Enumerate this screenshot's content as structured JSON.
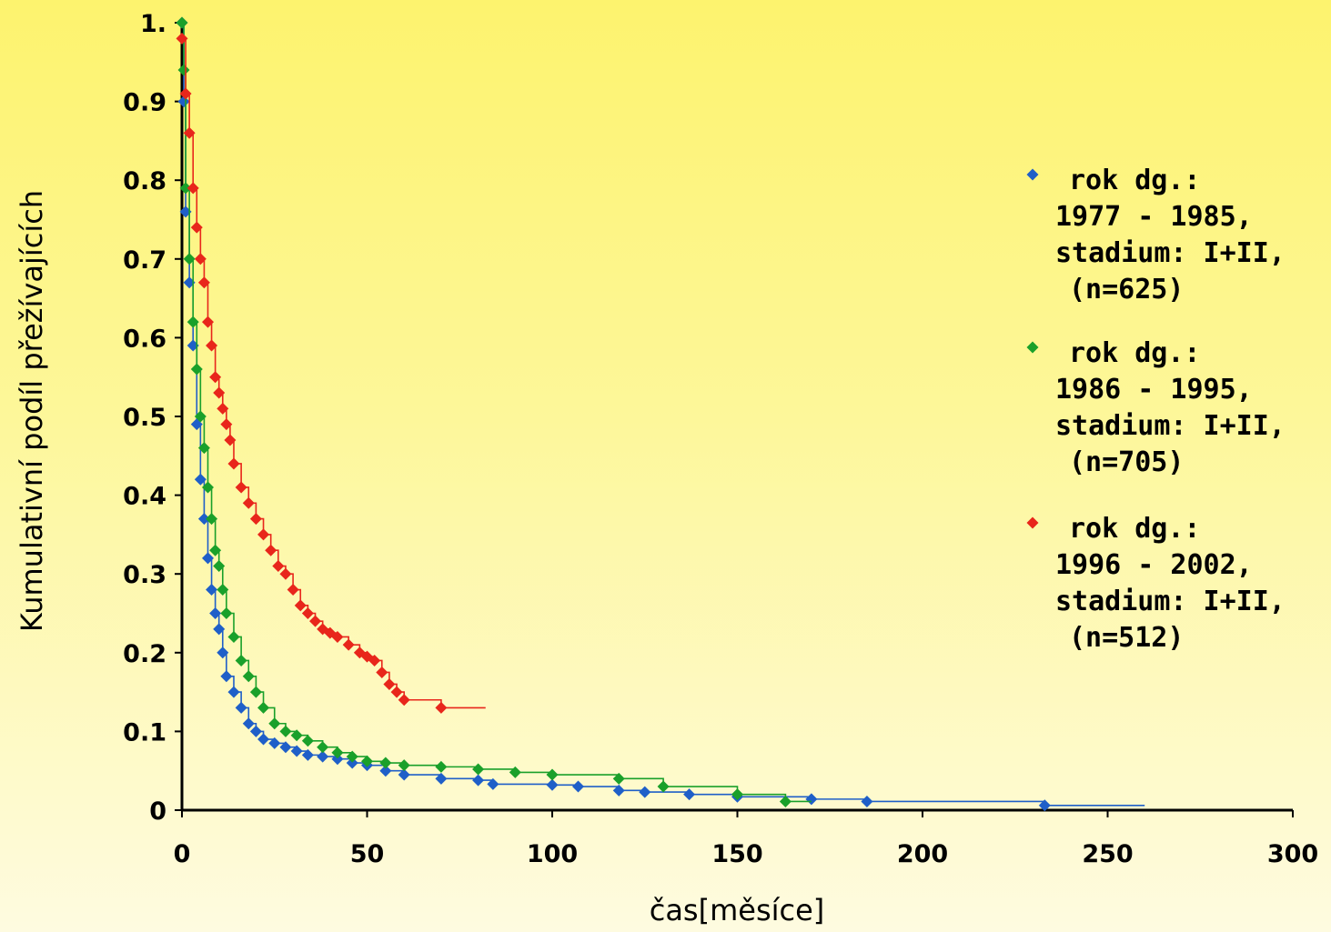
{
  "chart_data": {
    "type": "line",
    "xlabel": "čas[měsíce]",
    "ylabel": "Kumulativní podíl přežívajících",
    "xlim": [
      0,
      300
    ],
    "ylim": [
      0,
      1
    ],
    "x_ticks": [
      "0",
      "50",
      "100",
      "150",
      "200",
      "250",
      "300"
    ],
    "y_ticks": [
      "0",
      "0.1",
      "0.2",
      "0.3",
      "0.4",
      "0.5",
      "0.6",
      "0.7",
      "0.8",
      "0.9",
      "1."
    ],
    "grid": false,
    "legend_position": "right",
    "series": [
      {
        "name_lines": [
          "rok dg.:",
          "1977 - 1985,",
          "stadium: I+II,",
          "(n=625)"
        ],
        "color": "#1f5fc8",
        "x": [
          0,
          0.5,
          1,
          2,
          3,
          4,
          5,
          6,
          7,
          8,
          9,
          10,
          11,
          12,
          14,
          16,
          18,
          20,
          22,
          25,
          28,
          31,
          34,
          38,
          42,
          46,
          50,
          55,
          60,
          70,
          80,
          84,
          100,
          107,
          118,
          125,
          137,
          150,
          170,
          185,
          233,
          260
        ],
        "y": [
          1,
          0.9,
          0.76,
          0.67,
          0.59,
          0.49,
          0.42,
          0.37,
          0.32,
          0.28,
          0.25,
          0.23,
          0.2,
          0.17,
          0.15,
          0.13,
          0.11,
          0.1,
          0.09,
          0.085,
          0.08,
          0.075,
          0.07,
          0.068,
          0.065,
          0.06,
          0.057,
          0.05,
          0.045,
          0.04,
          0.038,
          0.033,
          0.032,
          0.03,
          0.025,
          0.023,
          0.02,
          0.017,
          0.014,
          0.011,
          0.006,
          0.006
        ]
      },
      {
        "name_lines": [
          "rok dg.:",
          "1986 - 1995,",
          "stadium: I+II,",
          "(n=705)"
        ],
        "color": "#1aa02a",
        "x": [
          0,
          0.5,
          1,
          2,
          3,
          4,
          5,
          6,
          7,
          8,
          9,
          10,
          11,
          12,
          14,
          16,
          18,
          20,
          22,
          25,
          28,
          31,
          34,
          38,
          42,
          46,
          50,
          55,
          60,
          70,
          80,
          90,
          100,
          118,
          130,
          150,
          163,
          170
        ],
        "y": [
          1,
          0.94,
          0.79,
          0.7,
          0.62,
          0.56,
          0.5,
          0.46,
          0.41,
          0.37,
          0.33,
          0.31,
          0.28,
          0.25,
          0.22,
          0.19,
          0.17,
          0.15,
          0.13,
          0.11,
          0.1,
          0.095,
          0.088,
          0.08,
          0.073,
          0.068,
          0.062,
          0.06,
          0.057,
          0.055,
          0.052,
          0.048,
          0.045,
          0.04,
          0.03,
          0.02,
          0.011,
          0.011
        ]
      },
      {
        "name_lines": [
          "rok dg.:",
          "1996 - 2002,",
          "stadium: I+II,",
          "(n=512)"
        ],
        "color": "#e8261b",
        "x": [
          0,
          1,
          2,
          3,
          4,
          5,
          6,
          7,
          8,
          9,
          10,
          11,
          12,
          13,
          14,
          16,
          18,
          20,
          22,
          24,
          26,
          28,
          30,
          32,
          34,
          36,
          38,
          40,
          42,
          45,
          48,
          50,
          52,
          54,
          56,
          58,
          60,
          70,
          82
        ],
        "y": [
          0.98,
          0.91,
          0.86,
          0.79,
          0.74,
          0.7,
          0.67,
          0.62,
          0.59,
          0.55,
          0.53,
          0.51,
          0.49,
          0.47,
          0.44,
          0.41,
          0.39,
          0.37,
          0.35,
          0.33,
          0.31,
          0.3,
          0.28,
          0.26,
          0.25,
          0.24,
          0.23,
          0.225,
          0.22,
          0.21,
          0.2,
          0.195,
          0.19,
          0.175,
          0.16,
          0.15,
          0.14,
          0.13,
          0.13
        ]
      }
    ]
  }
}
